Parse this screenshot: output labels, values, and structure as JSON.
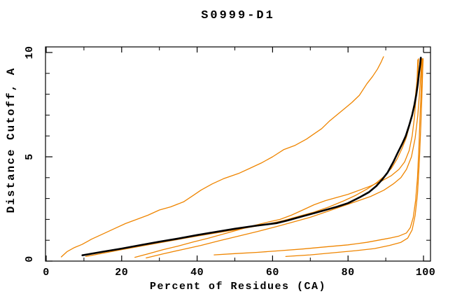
{
  "chart_data": {
    "type": "line",
    "title": "S0999-D1",
    "xlabel": "Percent of Residues (CA)",
    "ylabel": "Distance Cutoff, A",
    "xlim": [
      0,
      102
    ],
    "ylim": [
      0,
      10.3
    ],
    "grid": false,
    "legend": "none",
    "x_major_ticks": [
      0,
      20,
      40,
      60,
      80,
      100
    ],
    "x_minor_ticks": [
      10,
      30,
      50,
      70,
      90
    ],
    "x_tick_labels": [
      "0",
      "20",
      "40",
      "60",
      "80",
      "100"
    ],
    "y_major_ticks": [
      0,
      5,
      10
    ],
    "y_minor_ticks": [
      1,
      2,
      3,
      4,
      6,
      7,
      8,
      9
    ],
    "y_tick_labels": [
      "0",
      "5",
      "10"
    ],
    "colors": {
      "background": "#ffffff",
      "axis": "#000000",
      "orange_model": "#ef8500",
      "black_main": "#000000"
    },
    "series": [
      {
        "name": "orange-model-1",
        "color": "#ef8500",
        "width": 1.3,
        "points": [
          [
            4,
            0.2
          ],
          [
            5.5,
            0.45
          ],
          [
            7.5,
            0.65
          ],
          [
            9.5,
            0.8
          ],
          [
            12,
            1.05
          ],
          [
            15,
            1.3
          ],
          [
            18,
            1.55
          ],
          [
            21,
            1.8
          ],
          [
            24,
            2.0
          ],
          [
            27,
            2.2
          ],
          [
            30,
            2.45
          ],
          [
            33,
            2.6
          ],
          [
            36.5,
            2.85
          ],
          [
            39,
            3.15
          ],
          [
            41,
            3.4
          ],
          [
            44,
            3.7
          ],
          [
            47,
            3.95
          ],
          [
            51,
            4.2
          ],
          [
            54,
            4.45
          ],
          [
            57,
            4.7
          ],
          [
            60,
            5.0
          ],
          [
            63,
            5.35
          ],
          [
            66,
            5.55
          ],
          [
            69,
            5.85
          ],
          [
            71,
            6.1
          ],
          [
            73,
            6.35
          ],
          [
            75,
            6.7
          ],
          [
            77,
            7.0
          ],
          [
            79,
            7.3
          ],
          [
            81,
            7.6
          ],
          [
            83,
            7.95
          ],
          [
            85,
            8.5
          ],
          [
            86.5,
            8.85
          ],
          [
            87.8,
            9.2
          ],
          [
            88.8,
            9.55
          ],
          [
            89.4,
            9.8
          ]
        ]
      },
      {
        "name": "orange-model-2",
        "color": "#ef8500",
        "width": 1.3,
        "points": [
          [
            10.5,
            0.22
          ],
          [
            20,
            0.55
          ],
          [
            30,
            0.88
          ],
          [
            40,
            1.2
          ],
          [
            50,
            1.5
          ],
          [
            58,
            1.75
          ],
          [
            63,
            1.95
          ],
          [
            67,
            2.15
          ],
          [
            71,
            2.35
          ],
          [
            75,
            2.6
          ],
          [
            79,
            2.9
          ],
          [
            82,
            3.15
          ],
          [
            85,
            3.45
          ],
          [
            87.5,
            3.75
          ],
          [
            89.5,
            4.05
          ],
          [
            91.5,
            4.45
          ],
          [
            93,
            4.9
          ],
          [
            94.3,
            5.4
          ],
          [
            95.4,
            5.9
          ],
          [
            96.3,
            6.5
          ],
          [
            97.1,
            7.1
          ],
          [
            97.8,
            7.8
          ],
          [
            98.2,
            8.5
          ],
          [
            98.5,
            9.1
          ],
          [
            98.7,
            9.7
          ]
        ]
      },
      {
        "name": "orange-model-3",
        "color": "#ef8500",
        "width": 1.3,
        "points": [
          [
            23.5,
            0.18
          ],
          [
            27,
            0.35
          ],
          [
            31,
            0.55
          ],
          [
            35,
            0.72
          ],
          [
            39,
            0.92
          ],
          [
            43,
            1.1
          ],
          [
            47,
            1.3
          ],
          [
            51,
            1.5
          ],
          [
            55,
            1.7
          ],
          [
            59,
            1.88
          ],
          [
            62,
            2.0
          ],
          [
            65,
            2.2
          ],
          [
            68,
            2.45
          ],
          [
            71,
            2.7
          ],
          [
            74,
            2.9
          ],
          [
            77,
            3.05
          ],
          [
            80,
            3.2
          ],
          [
            83,
            3.4
          ],
          [
            86,
            3.6
          ],
          [
            89,
            3.85
          ],
          [
            91.5,
            4.1
          ],
          [
            93.5,
            4.4
          ],
          [
            95,
            4.75
          ],
          [
            96.2,
            5.3
          ],
          [
            97,
            6.0
          ],
          [
            97.6,
            6.9
          ],
          [
            98,
            7.8
          ],
          [
            98.3,
            8.7
          ],
          [
            98.5,
            9.65
          ]
        ]
      },
      {
        "name": "orange-model-4",
        "color": "#ef8500",
        "width": 1.3,
        "points": [
          [
            26.5,
            0.15
          ],
          [
            31,
            0.35
          ],
          [
            36,
            0.55
          ],
          [
            41,
            0.75
          ],
          [
            46,
            0.98
          ],
          [
            51,
            1.2
          ],
          [
            56,
            1.42
          ],
          [
            61,
            1.65
          ],
          [
            66,
            1.9
          ],
          [
            70,
            2.1
          ],
          [
            74,
            2.35
          ],
          [
            78,
            2.6
          ],
          [
            82,
            2.85
          ],
          [
            86,
            3.1
          ],
          [
            89.5,
            3.4
          ],
          [
            92,
            3.7
          ],
          [
            94,
            4.0
          ],
          [
            95.5,
            4.4
          ],
          [
            96.8,
            5.0
          ],
          [
            97.8,
            5.9
          ],
          [
            98.5,
            7.0
          ],
          [
            99,
            8.2
          ],
          [
            99.3,
            9.0
          ],
          [
            99.5,
            9.7
          ]
        ]
      },
      {
        "name": "orange-model-5",
        "color": "#ef8500",
        "width": 1.3,
        "points": [
          [
            44.5,
            0.3
          ],
          [
            50,
            0.36
          ],
          [
            56,
            0.42
          ],
          [
            62,
            0.5
          ],
          [
            68,
            0.58
          ],
          [
            74,
            0.68
          ],
          [
            80,
            0.78
          ],
          [
            85,
            0.9
          ],
          [
            88,
            1.0
          ],
          [
            91,
            1.1
          ],
          [
            93.5,
            1.2
          ],
          [
            95.5,
            1.35
          ],
          [
            96.5,
            1.6
          ],
          [
            97.3,
            2.1
          ],
          [
            97.9,
            2.9
          ],
          [
            98.4,
            4.0
          ],
          [
            98.8,
            5.5
          ],
          [
            99.1,
            7.0
          ],
          [
            99.4,
            8.3
          ],
          [
            99.6,
            9.3
          ],
          [
            99.7,
            9.7
          ]
        ]
      },
      {
        "name": "orange-model-6",
        "color": "#ef8500",
        "width": 1.3,
        "points": [
          [
            63.5,
            0.22
          ],
          [
            70,
            0.3
          ],
          [
            76,
            0.4
          ],
          [
            82,
            0.5
          ],
          [
            87,
            0.6
          ],
          [
            91,
            0.75
          ],
          [
            94,
            0.9
          ],
          [
            95.8,
            1.1
          ],
          [
            97,
            1.5
          ],
          [
            97.8,
            2.2
          ],
          [
            98.4,
            3.2
          ],
          [
            98.9,
            4.8
          ],
          [
            99.3,
            6.5
          ],
          [
            99.6,
            8.0
          ],
          [
            99.8,
            9.2
          ],
          [
            99.9,
            9.7
          ]
        ]
      },
      {
        "name": "black-main-curve",
        "color": "#000000",
        "width": 2.6,
        "points": [
          [
            9.6,
            0.28
          ],
          [
            15,
            0.45
          ],
          [
            20,
            0.6
          ],
          [
            25,
            0.77
          ],
          [
            30,
            0.93
          ],
          [
            35,
            1.08
          ],
          [
            40,
            1.25
          ],
          [
            45,
            1.4
          ],
          [
            50,
            1.55
          ],
          [
            55,
            1.68
          ],
          [
            61,
            1.82
          ],
          [
            64,
            1.95
          ],
          [
            68,
            2.15
          ],
          [
            71,
            2.3
          ],
          [
            74,
            2.45
          ],
          [
            77,
            2.6
          ],
          [
            80,
            2.78
          ],
          [
            83,
            3.05
          ],
          [
            85.5,
            3.3
          ],
          [
            87.5,
            3.6
          ],
          [
            89,
            3.9
          ],
          [
            90.5,
            4.25
          ],
          [
            92,
            4.75
          ],
          [
            93.2,
            5.2
          ],
          [
            94.3,
            5.6
          ],
          [
            95.3,
            6.0
          ],
          [
            96.2,
            6.5
          ],
          [
            97,
            7.0
          ],
          [
            97.6,
            7.5
          ],
          [
            98.1,
            8.0
          ],
          [
            98.5,
            8.5
          ],
          [
            98.8,
            9.0
          ],
          [
            99.1,
            9.4
          ],
          [
            99.3,
            9.75
          ]
        ]
      }
    ]
  }
}
